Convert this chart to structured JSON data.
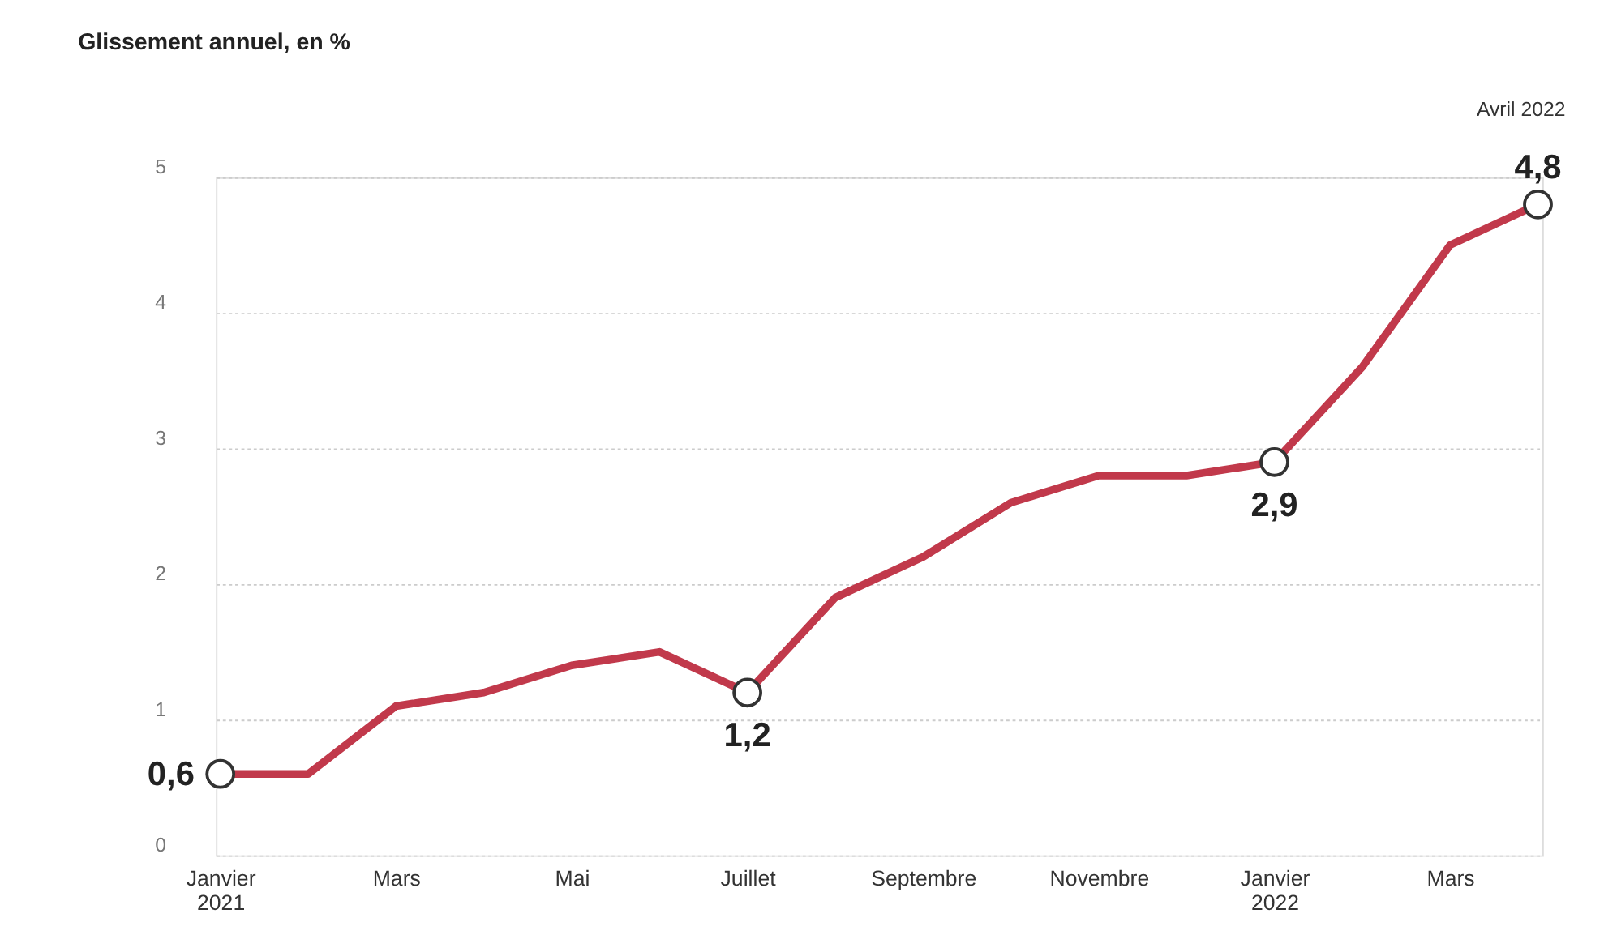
{
  "chart_data": {
    "type": "line",
    "title": "Glissement annuel, en %",
    "categories": [
      "Janvier 2021",
      null,
      "Mars",
      null,
      "Mai",
      null,
      "Juillet",
      null,
      "Septembre",
      null,
      "Novembre",
      null,
      "Janvier 2022",
      null,
      "Mars",
      null
    ],
    "series": [
      {
        "color": "#c1394b",
        "values": [
          0.6,
          0.6,
          1.1,
          1.2,
          1.4,
          1.5,
          1.2,
          1.9,
          2.2,
          2.6,
          2.8,
          2.8,
          2.9,
          3.6,
          4.5,
          4.8
        ],
        "value_labels": [
          "0,6",
          null,
          null,
          null,
          null,
          null,
          "1,2",
          null,
          null,
          null,
          null,
          null,
          "2,9",
          null,
          null,
          "4,8"
        ]
      }
    ],
    "annotations": [
      "Avril 2022"
    ],
    "ylim": [
      0,
      5
    ],
    "yticks": [
      0,
      1,
      2,
      3,
      4,
      5
    ],
    "grid": "y"
  }
}
